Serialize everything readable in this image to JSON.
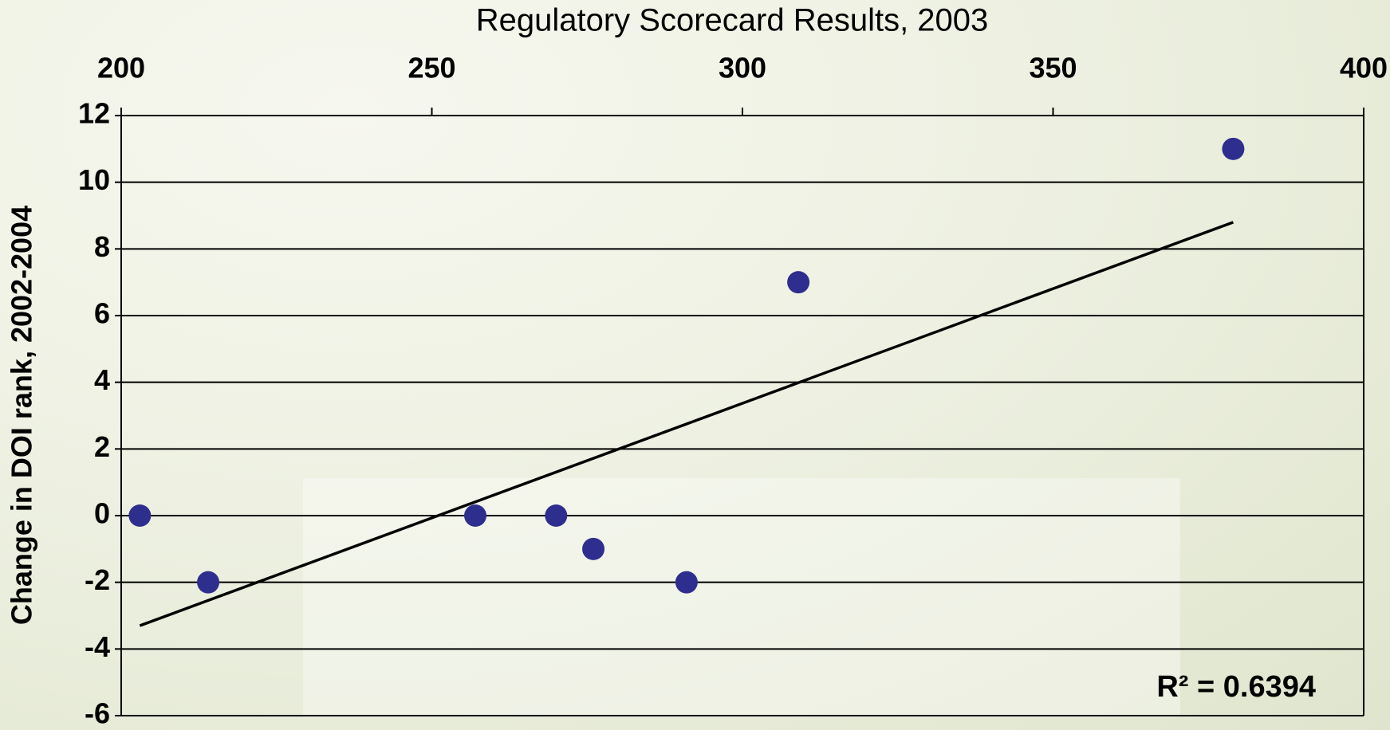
{
  "chart_data": {
    "type": "scatter",
    "title": "Regulatory Scorecard Results, 2003",
    "y_label": "Change in DOI rank, 2002-2004",
    "annotation": "R² = 0.6394",
    "x": [
      203,
      214,
      257,
      270,
      276,
      291,
      309,
      379
    ],
    "values": [
      0,
      -2,
      0,
      0,
      -1,
      -2,
      7,
      11
    ],
    "color": "#2e2e8f",
    "trendline": {
      "x": [
        203,
        379
      ],
      "y": [
        -3.3,
        8.8
      ],
      "color": "#000000"
    },
    "xlim": [
      200,
      400
    ],
    "xticks": [
      200,
      250,
      300,
      350,
      400
    ],
    "ylim": [
      -6,
      12
    ],
    "yticks": [
      -6,
      -4,
      -2,
      0,
      2,
      4,
      6,
      8,
      10,
      12
    ],
    "grid": true
  }
}
